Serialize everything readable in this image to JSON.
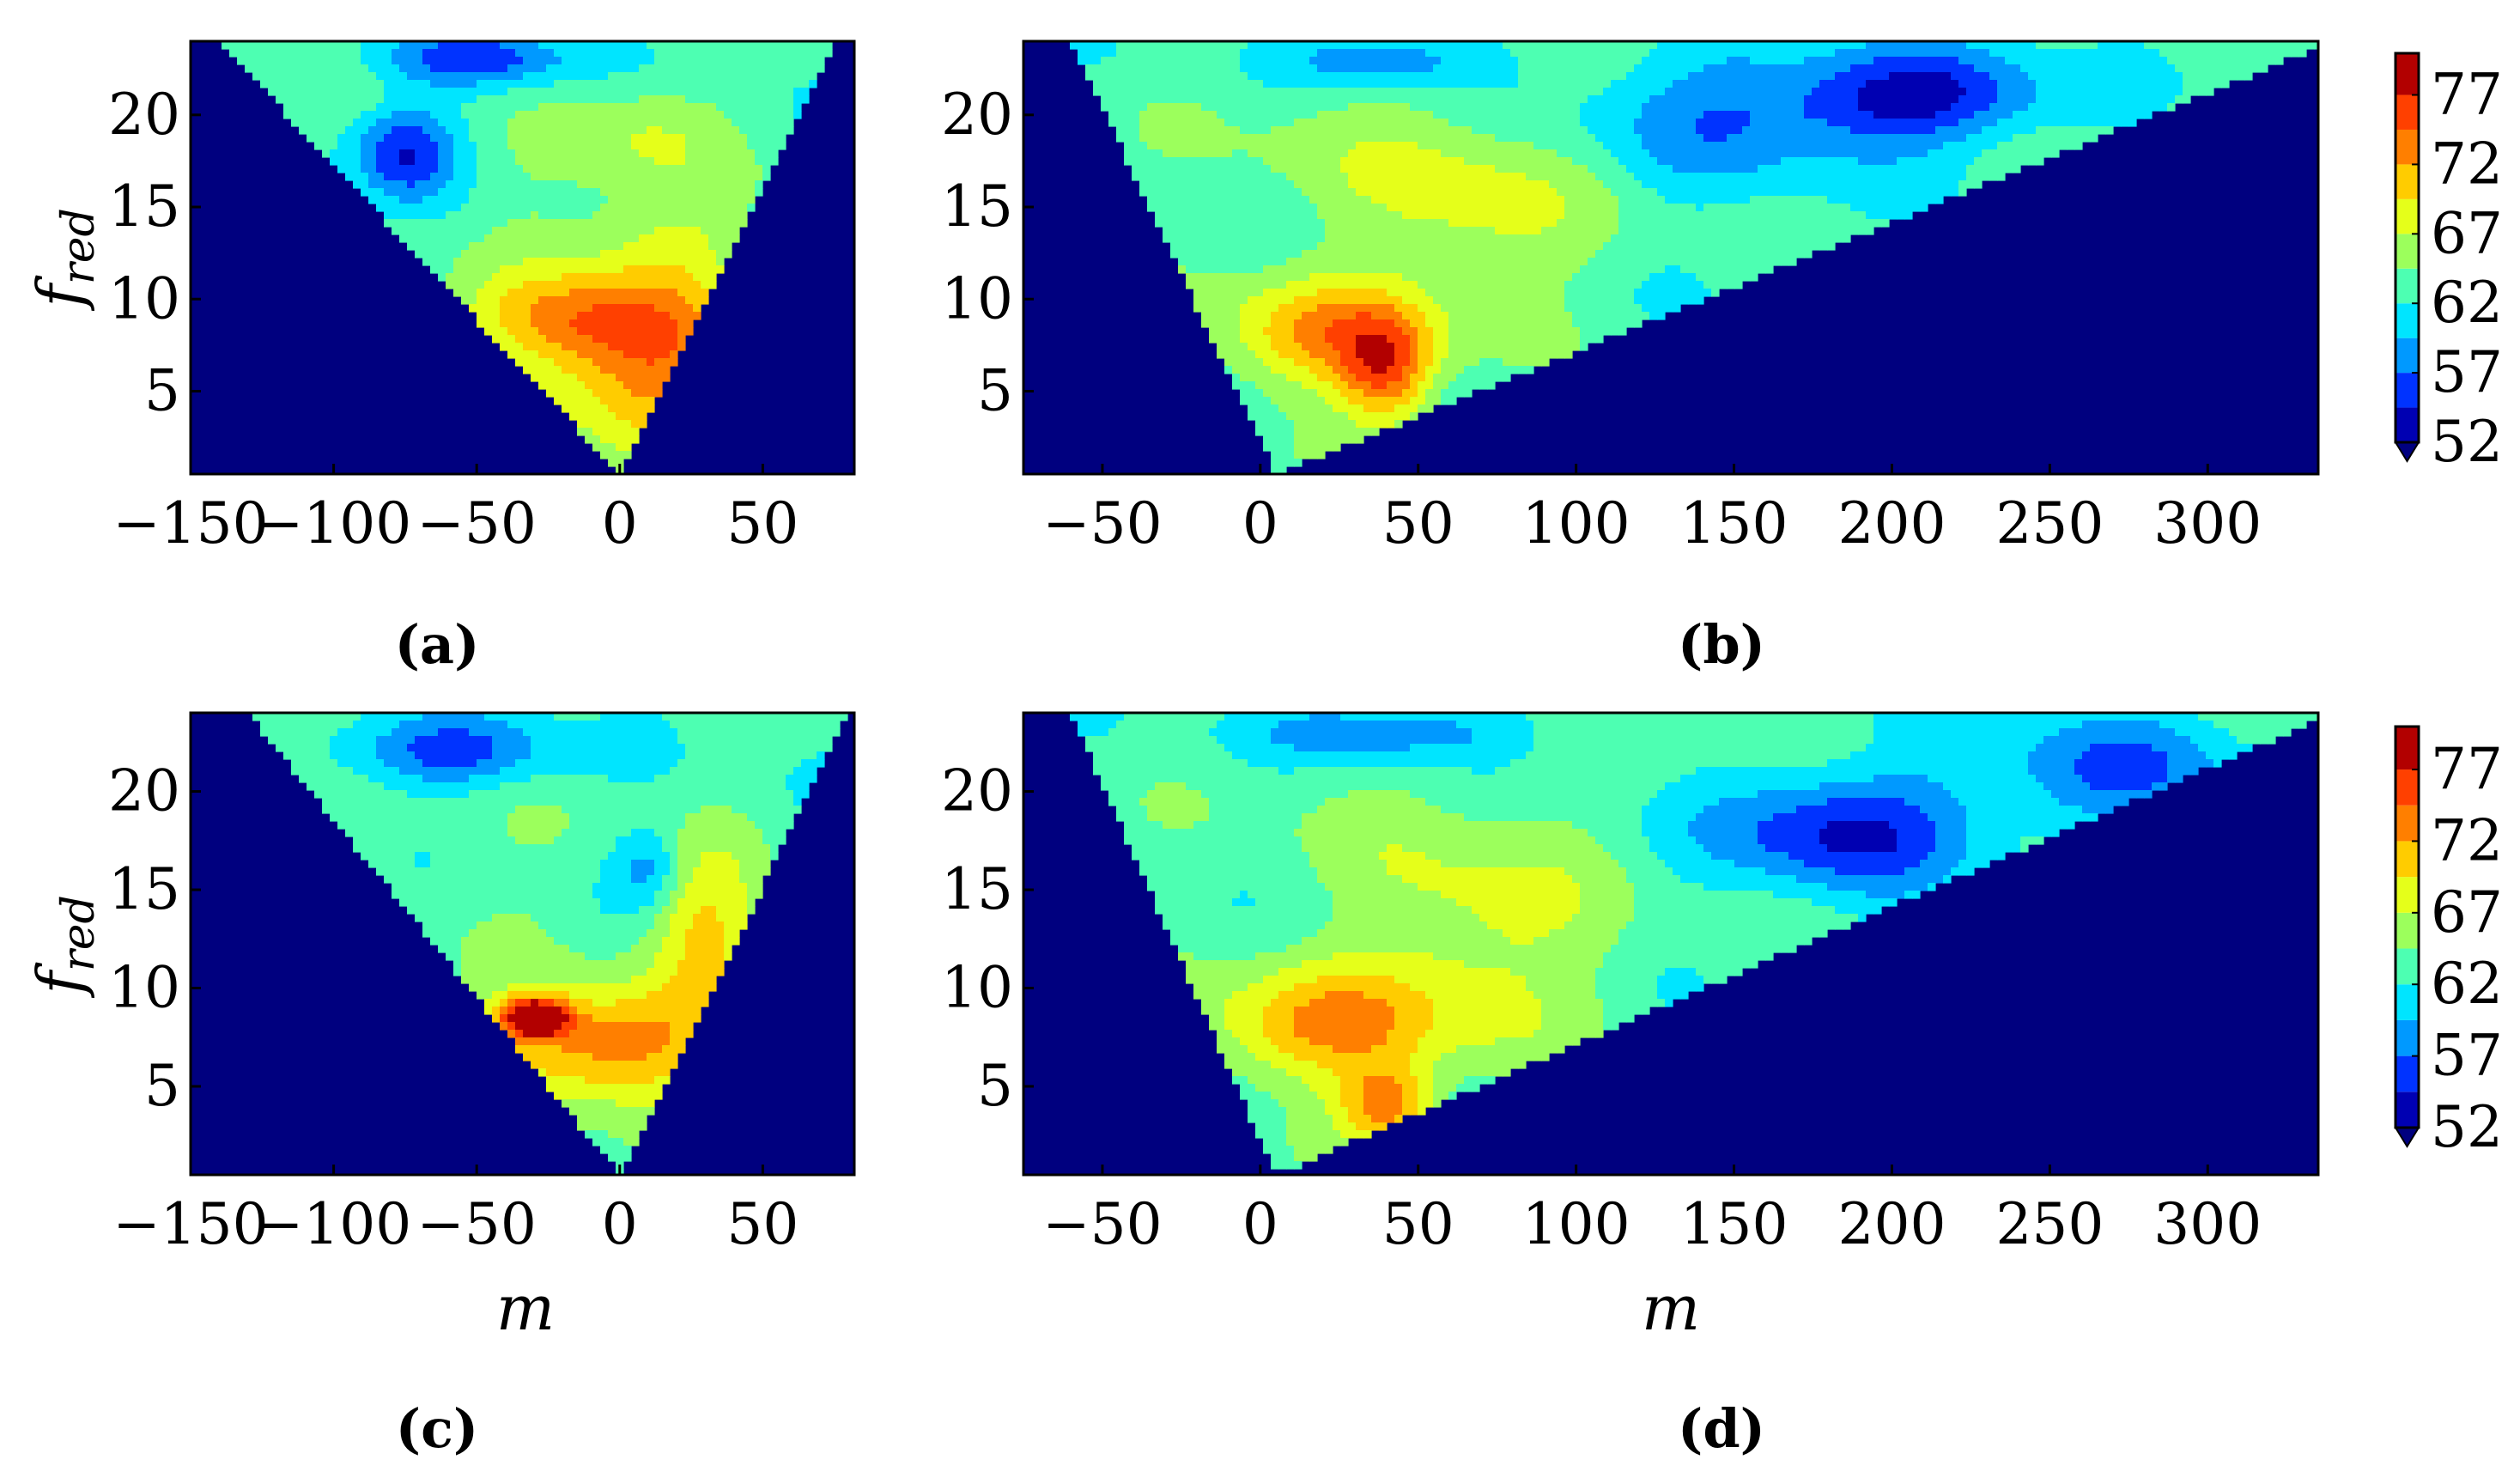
{
  "colors": {
    "background": "#00007F",
    "frame": "#000000",
    "colormap": "jet",
    "level_colors": [
      "#0000B2",
      "#0033FF",
      "#0099FF",
      "#00E5FF",
      "#4DFFB2",
      "#9CFF5C",
      "#E5FF1A",
      "#FFCC00",
      "#FF7F00",
      "#FF4000",
      "#B20000"
    ]
  },
  "figure": {
    "panels": [
      {
        "label": "(a)",
        "ylabel": "f",
        "ylabel_sub": "red",
        "xlabel": ""
      },
      {
        "label": "(b)",
        "ylabel": "",
        "ylabel_sub": "",
        "xlabel": ""
      },
      {
        "label": "(c)",
        "ylabel": "f",
        "ylabel_sub": "red",
        "xlabel": "m"
      },
      {
        "label": "(d)",
        "ylabel": "",
        "ylabel_sub": "",
        "xlabel": "m"
      }
    ],
    "colorbars": [
      {
        "ticks": [
          "77",
          "72",
          "67",
          "62",
          "57",
          "52"
        ],
        "extend": "min"
      },
      {
        "ticks": [
          "77",
          "72",
          "67",
          "62",
          "57",
          "52"
        ],
        "extend": "min"
      }
    ]
  },
  "chart_data": [
    {
      "type": "heatmap",
      "panel": "(a)",
      "title": "",
      "xlabel": "",
      "ylabel": "f_red",
      "xlim": [
        -150,
        82
      ],
      "ylim": [
        0.5,
        24
      ],
      "xticks": [
        -150,
        -100,
        -50,
        0,
        50
      ],
      "xtick_labels": [
        "−150",
        "−100",
        "−50",
        "0",
        "50"
      ],
      "yticks": [
        5,
        10,
        15,
        20
      ],
      "ytick_labels": [
        "5",
        "10",
        "15",
        "20"
      ],
      "clim": [
        52,
        80
      ],
      "levels": [
        52,
        54.5,
        57,
        59.5,
        62,
        64.5,
        67,
        69.5,
        72,
        74.5,
        77,
        80
      ],
      "domain": "wedge |m| <= ~3.5 f_red, apex at m=0",
      "wedge": {
        "apex": [
          0,
          0.5
        ],
        "left_top": [
          -140,
          24
        ],
        "right_top": [
          75,
          24
        ]
      },
      "blobs": [
        {
          "m": 10,
          "f": 6,
          "value": 73,
          "sm": 38,
          "sf": 4
        },
        {
          "m": -15,
          "f": 9,
          "value": 71,
          "sm": 40,
          "sf": 2.5
        },
        {
          "m": 15,
          "f": 13,
          "value": 67.5,
          "sm": 30,
          "sf": 3
        },
        {
          "m": 10,
          "f": 19,
          "value": 67,
          "sm": 25,
          "sf": 3
        },
        {
          "m": -30,
          "f": 15,
          "value": 64,
          "sm": 35,
          "sf": 4
        },
        {
          "m": -75,
          "f": 18,
          "value": 55,
          "sm": 18,
          "sf": 2.5
        },
        {
          "m": -50,
          "f": 23,
          "value": 56,
          "sm": 35,
          "sf": 1.5
        }
      ],
      "background": 63
    },
    {
      "type": "heatmap",
      "panel": "(b)",
      "title": "",
      "xlabel": "",
      "ylabel": "",
      "xlim": [
        -75,
        335
      ],
      "ylim": [
        0.5,
        24
      ],
      "xticks": [
        -50,
        0,
        50,
        100,
        150,
        200,
        250,
        300
      ],
      "xtick_labels": [
        "−50",
        "0",
        "50",
        "100",
        "150",
        "200",
        "250",
        "300"
      ],
      "yticks": [
        5,
        10,
        15,
        20
      ],
      "ytick_labels": [
        "5",
        "10",
        "15",
        "20"
      ],
      "clim": [
        52,
        80
      ],
      "levels": [
        52,
        54.5,
        57,
        59.5,
        62,
        64.5,
        67,
        69.5,
        72,
        74.5,
        77,
        80
      ],
      "domain": "wedge between m = -3 f_red and m = 13 f_red",
      "wedge": {
        "apex": [
          5,
          0.5
        ],
        "left_top": [
          -60,
          24
        ],
        "right_top": [
          340,
          24
        ],
        "right_cut": [
          262,
          17
        ]
      },
      "blobs": [
        {
          "m": 20,
          "f": 8,
          "value": 72,
          "sm": 35,
          "sf": 3
        },
        {
          "m": 40,
          "f": 6,
          "value": 73,
          "sm": 15,
          "sf": 3
        },
        {
          "m": 70,
          "f": 15,
          "value": 68,
          "sm": 35,
          "sf": 5
        },
        {
          "m": 20,
          "f": 18,
          "value": 65,
          "sm": 40,
          "sf": 5
        },
        {
          "m": 150,
          "f": 20,
          "value": 58,
          "sm": 50,
          "sf": 4
        },
        {
          "m": 210,
          "f": 21,
          "value": 54,
          "sm": 40,
          "sf": 2.5
        },
        {
          "m": 40,
          "f": 23,
          "value": 57,
          "sm": 30,
          "sf": 1.5
        }
      ],
      "background": 63
    },
    {
      "type": "heatmap",
      "panel": "(c)",
      "title": "",
      "xlabel": "m",
      "ylabel": "f_red",
      "xlim": [
        -150,
        82
      ],
      "ylim": [
        0.5,
        24
      ],
      "xticks": [
        -150,
        -100,
        -50,
        0,
        50
      ],
      "xtick_labels": [
        "−150",
        "−100",
        "−50",
        "0",
        "50"
      ],
      "yticks": [
        5,
        10,
        15,
        20
      ],
      "ytick_labels": [
        "5",
        "10",
        "15",
        "20"
      ],
      "clim": [
        52,
        80
      ],
      "levels": [
        52,
        54.5,
        57,
        59.5,
        62,
        64.5,
        67,
        69.5,
        72,
        74.5,
        77,
        80
      ],
      "domain": "wedge |m| <= ~3.5 f_red, apex at m=0",
      "wedge": {
        "apex": [
          0,
          0.5
        ],
        "left_top": [
          -130,
          24
        ],
        "right_top": [
          80,
          24
        ]
      },
      "blobs": [
        {
          "m": -5,
          "f": 7,
          "value": 74,
          "sm": 40,
          "sf": 3
        },
        {
          "m": -30,
          "f": 8.5,
          "value": 79,
          "sm": 12,
          "sf": 1
        },
        {
          "m": 30,
          "f": 13,
          "value": 70,
          "sm": 20,
          "sf": 4
        },
        {
          "m": 10,
          "f": 16,
          "value": 58,
          "sm": 12,
          "sf": 2
        },
        {
          "m": -40,
          "f": 15,
          "value": 64,
          "sm": 40,
          "sf": 5
        },
        {
          "m": -60,
          "f": 22,
          "value": 56,
          "sm": 40,
          "sf": 1.8
        }
      ],
      "background": 63
    },
    {
      "type": "heatmap",
      "panel": "(d)",
      "title": "",
      "xlabel": "m",
      "ylabel": "",
      "xlim": [
        -75,
        335
      ],
      "ylim": [
        0.5,
        24
      ],
      "xticks": [
        -50,
        0,
        50,
        100,
        150,
        200,
        250,
        300
      ],
      "xtick_labels": [
        "−50",
        "0",
        "50",
        "100",
        "150",
        "200",
        "250",
        "300"
      ],
      "yticks": [
        5,
        10,
        15,
        20
      ],
      "ytick_labels": [
        "5",
        "10",
        "15",
        "20"
      ],
      "clim": [
        52,
        80
      ],
      "levels": [
        52,
        54.5,
        57,
        59.5,
        62,
        64.5,
        67,
        69.5,
        72,
        74.5,
        77,
        80
      ],
      "domain": "wedge between m = -3 f_red and m = 13 f_red",
      "wedge": {
        "apex": [
          5,
          0.5
        ],
        "left_top": [
          -60,
          24
        ],
        "right_top": [
          340,
          24
        ],
        "right_cut": [
          320,
          22
        ]
      },
      "blobs": [
        {
          "m": 20,
          "f": 8,
          "value": 72,
          "sm": 40,
          "sf": 3
        },
        {
          "m": 40,
          "f": 4,
          "value": 73,
          "sm": 15,
          "sf": 2
        },
        {
          "m": 70,
          "f": 13,
          "value": 68,
          "sm": 40,
          "sf": 6
        },
        {
          "m": 20,
          "f": 19,
          "value": 64,
          "sm": 40,
          "sf": 5
        },
        {
          "m": 185,
          "f": 18,
          "value": 54,
          "sm": 40,
          "sf": 3
        },
        {
          "m": 270,
          "f": 21,
          "value": 57,
          "sm": 40,
          "sf": 3
        },
        {
          "m": 40,
          "f": 23,
          "value": 57,
          "sm": 40,
          "sf": 1.5
        }
      ],
      "background": 63
    }
  ]
}
